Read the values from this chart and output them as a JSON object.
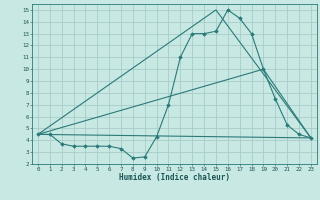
{
  "xlabel": "Humidex (Indice chaleur)",
  "xlim": [
    -0.5,
    23.5
  ],
  "ylim": [
    2,
    15.5
  ],
  "xticks": [
    0,
    1,
    2,
    3,
    4,
    5,
    6,
    7,
    8,
    9,
    10,
    11,
    12,
    13,
    14,
    15,
    16,
    17,
    18,
    19,
    20,
    21,
    22,
    23
  ],
  "yticks": [
    2,
    3,
    4,
    5,
    6,
    7,
    8,
    9,
    10,
    11,
    12,
    13,
    14,
    15
  ],
  "bg_color": "#c8e8e4",
  "grid_color": "#a8ccc8",
  "line_color": "#2a7a78",
  "lines": [
    {
      "x": [
        0,
        1,
        2,
        3,
        4,
        5,
        6,
        7,
        8,
        9,
        10,
        11,
        12,
        13,
        14,
        15,
        16,
        17,
        18,
        19,
        20,
        21,
        22,
        23
      ],
      "y": [
        4.5,
        4.5,
        3.7,
        3.5,
        3.5,
        3.5,
        3.5,
        3.3,
        2.5,
        2.6,
        4.3,
        7.0,
        11.0,
        13.0,
        13.0,
        13.2,
        15.0,
        14.3,
        13.0,
        10.0,
        7.5,
        5.3,
        4.5,
        4.2
      ],
      "marker": true
    },
    {
      "x": [
        0,
        15,
        23
      ],
      "y": [
        4.5,
        15.0,
        4.2
      ],
      "marker": false
    },
    {
      "x": [
        0,
        23
      ],
      "y": [
        4.5,
        4.2
      ],
      "marker": false
    },
    {
      "x": [
        0,
        19,
        23
      ],
      "y": [
        4.5,
        10.0,
        4.2
      ],
      "marker": false
    }
  ]
}
